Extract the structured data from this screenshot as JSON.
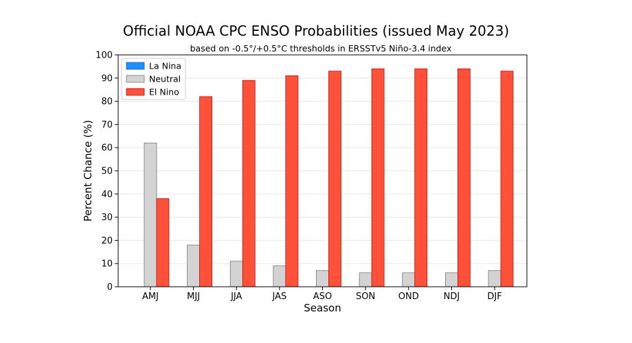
{
  "chart_data": {
    "type": "bar",
    "title": "Official NOAA CPC ENSO Probabilities (issued May 2023)",
    "subtitle": "based on -0.5°/+0.5°C thresholds in ERSSTv5 Niño-3.4 index",
    "xlabel": "Season",
    "ylabel": "Percent Chance (%)",
    "ylim": [
      0,
      100
    ],
    "yticks": [
      "0",
      "10",
      "20",
      "30",
      "40",
      "50",
      "60",
      "70",
      "80",
      "90",
      "100"
    ],
    "categories": [
      "AMJ",
      "MJJ",
      "JJA",
      "JAS",
      "ASO",
      "SON",
      "OND",
      "NDJ",
      "DJF"
    ],
    "series": [
      {
        "name": "La Nina",
        "color": "#1e90ff",
        "values": [
          0,
          0,
          0,
          0,
          0,
          0,
          0,
          0,
          0
        ]
      },
      {
        "name": "Neutral",
        "color": "#d3d3d3",
        "values": [
          62,
          18,
          11,
          9,
          7,
          6,
          6,
          6,
          7
        ]
      },
      {
        "name": "El Nino",
        "color": "#ff5039",
        "values": [
          38,
          82,
          89,
          91,
          93,
          94,
          94,
          94,
          93
        ]
      }
    ],
    "grid": "horizontal",
    "legend_position": "top-left"
  }
}
